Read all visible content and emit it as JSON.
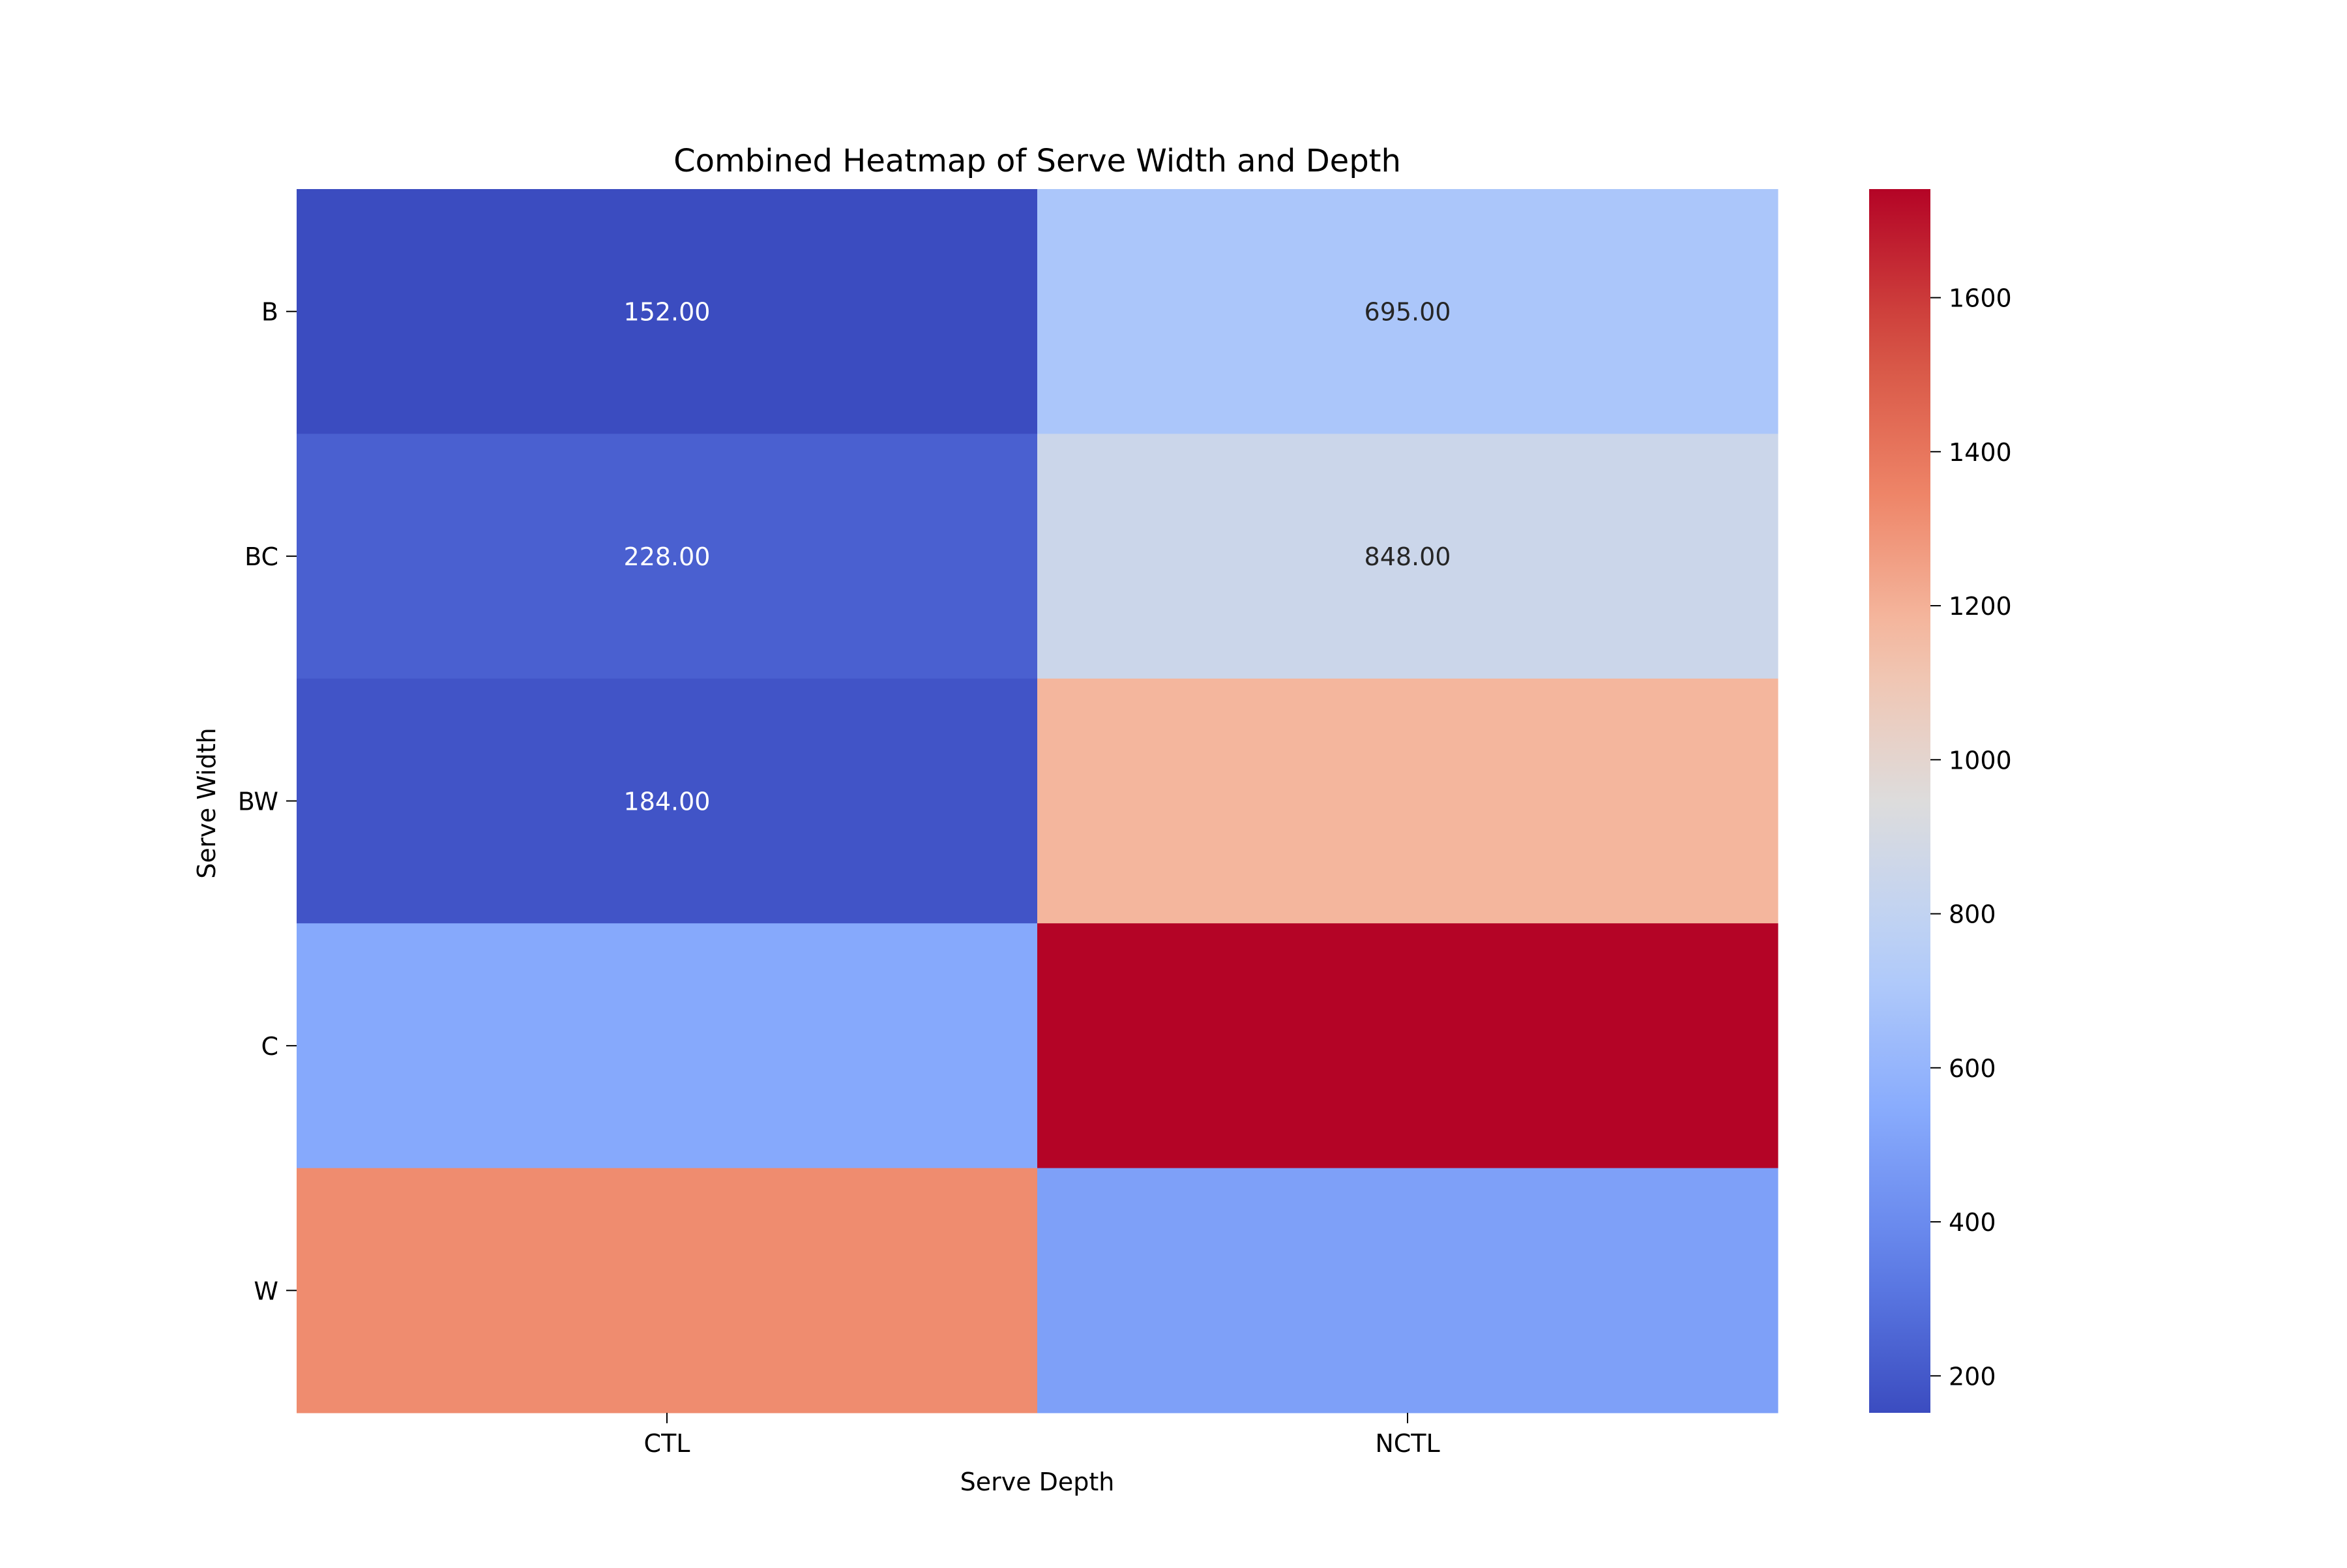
{
  "chart_data": {
    "type": "heatmap",
    "title": "Combined Heatmap of Serve Width and Depth",
    "xlabel": "Serve Depth",
    "ylabel": "Serve Width",
    "x_categories": [
      "CTL",
      "NCTL"
    ],
    "y_categories": [
      "B",
      "BC",
      "BW",
      "C",
      "W"
    ],
    "values": [
      [
        152,
        695
      ],
      [
        228,
        848
      ],
      [
        184,
        1183
      ],
      [
        535,
        1741
      ],
      [
        1321,
        495
      ]
    ],
    "cell_labels": [
      [
        "152.00",
        "695.00"
      ],
      [
        "228.00",
        "848.00"
      ],
      [
        "184.00",
        ""
      ],
      [
        "",
        ""
      ],
      [
        "",
        ""
      ]
    ],
    "colormap": "coolwarm",
    "vmin": 152,
    "vmax": 1741,
    "colorbar_ticks": [
      200,
      400,
      600,
      800,
      1000,
      1200,
      1400,
      1600
    ],
    "colorbar_tick_labels": [
      "200",
      "400",
      "600",
      "800",
      "1000",
      "1200",
      "1400",
      "1600"
    ],
    "colorbar_placement": "right",
    "grid": false
  }
}
